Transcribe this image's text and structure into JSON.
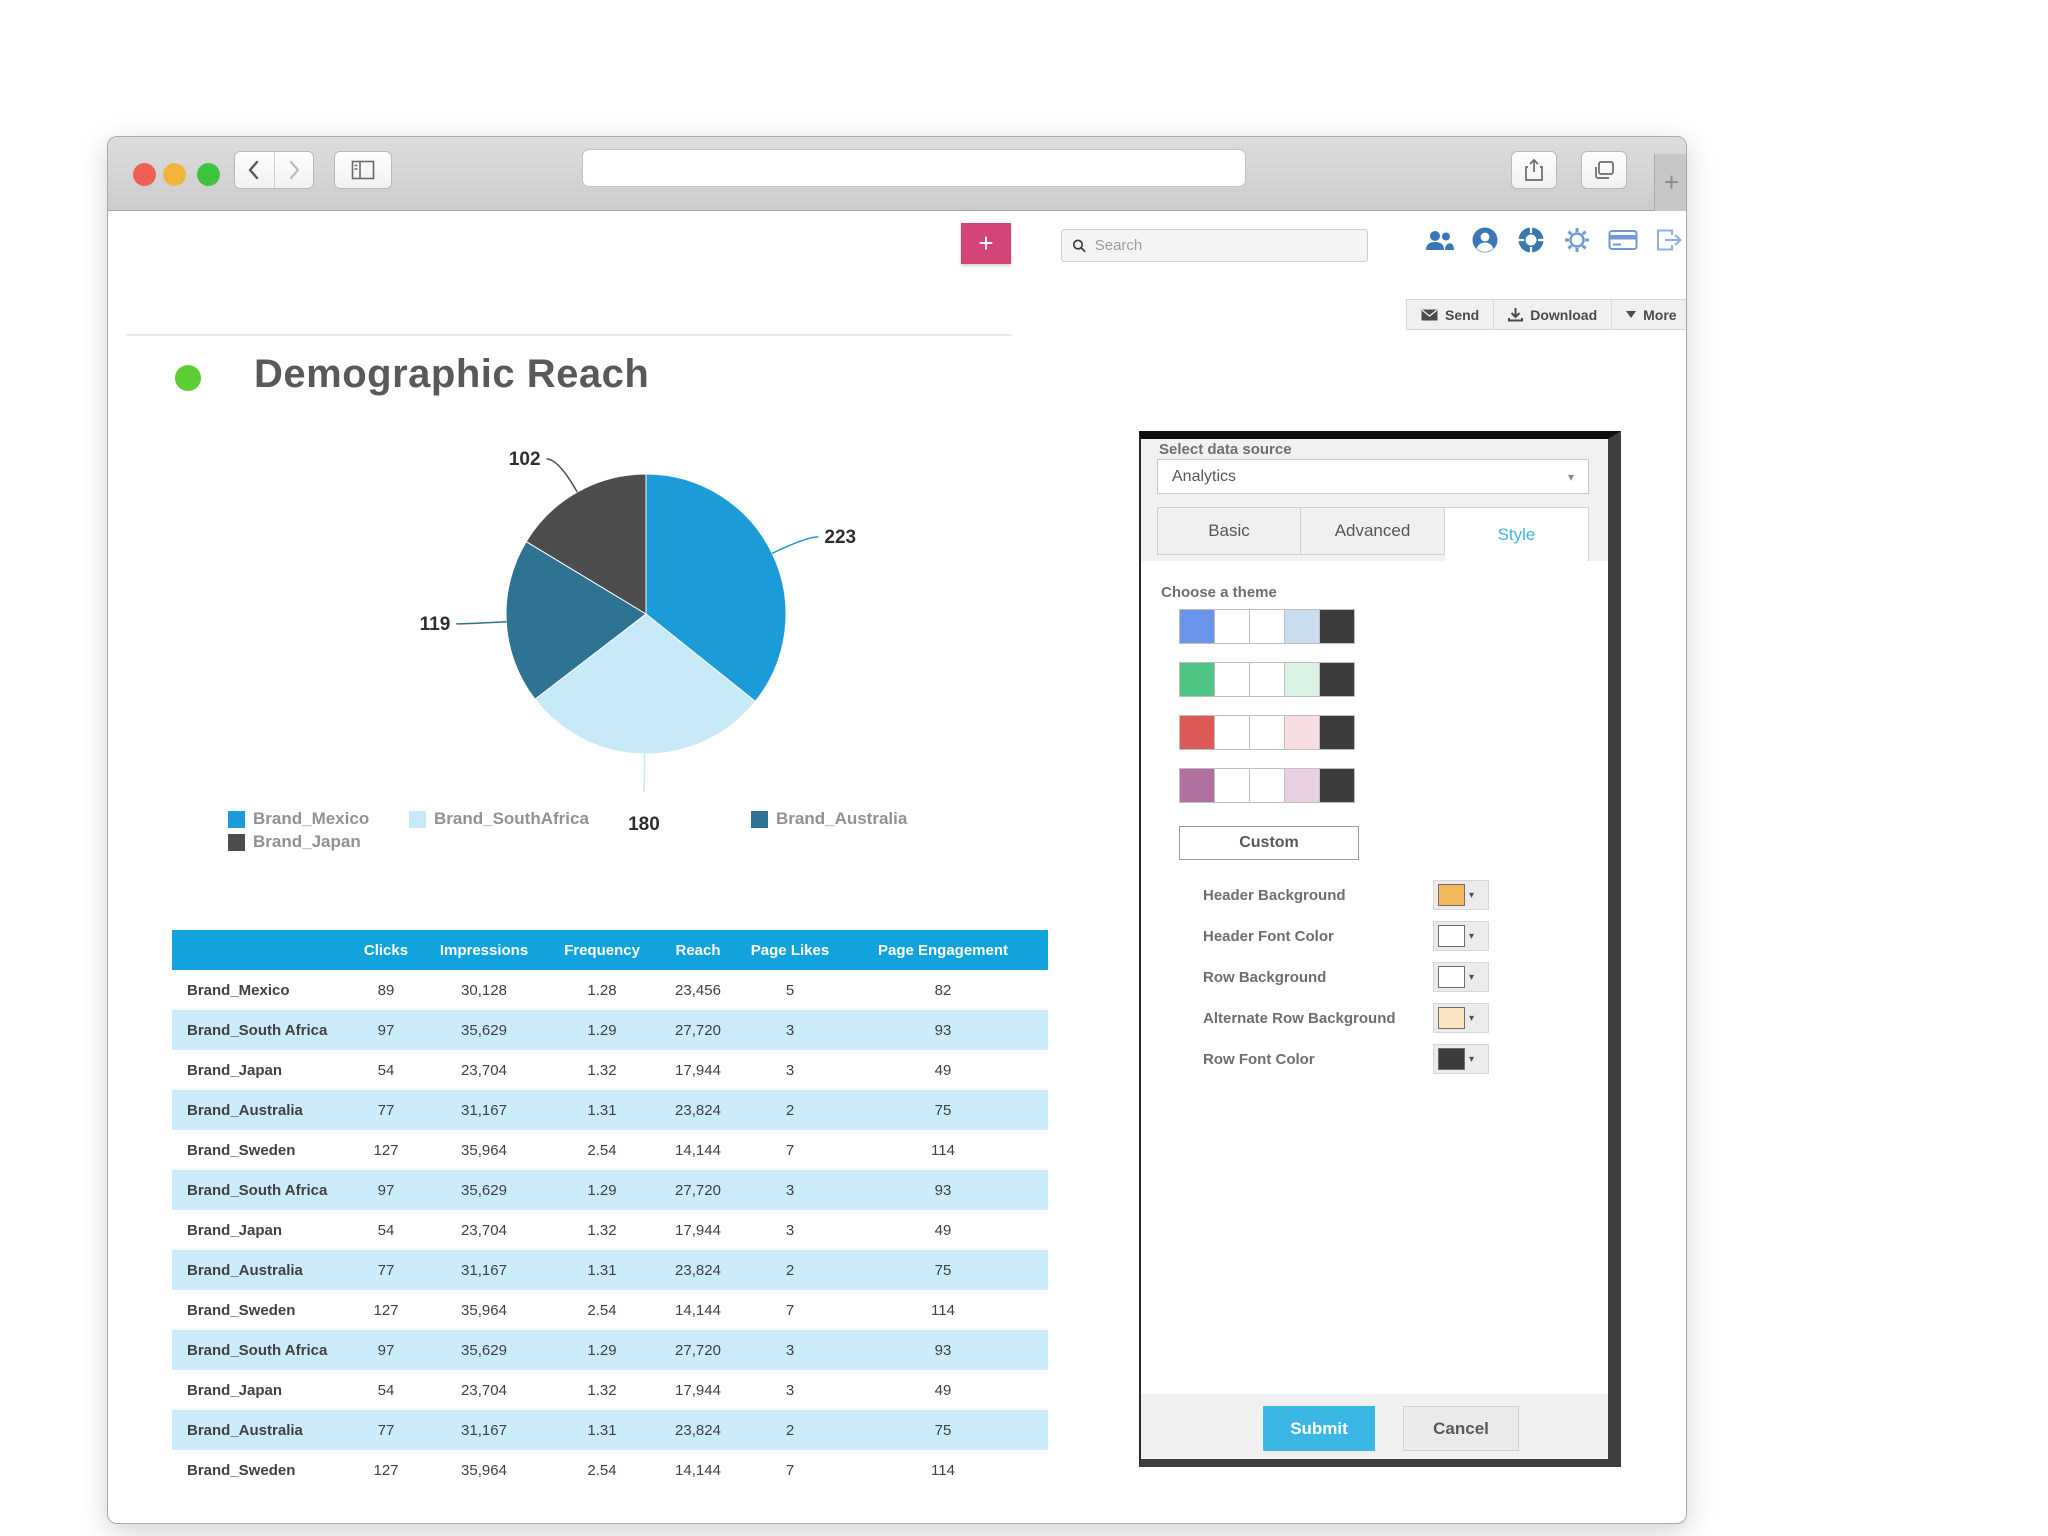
{
  "search": {
    "placeholder": "Search"
  },
  "toolbar": {
    "add_label": "+",
    "new_tab_label": "+",
    "header_icons": [
      "users",
      "user-profile",
      "help-ring",
      "settings-gear",
      "billing-card",
      "logout"
    ]
  },
  "actions": {
    "send": "Send",
    "download": "Download",
    "more": "More"
  },
  "page": {
    "title": "Demographic Reach"
  },
  "chart_data": {
    "type": "pie",
    "title": "Demographic Reach",
    "labels": [
      "Brand_Mexico",
      "Brand_SouthAfrica",
      "Brand_Australia",
      "Brand_Japan"
    ],
    "values": [
      223,
      180,
      119,
      102
    ],
    "colors": [
      "#1b9bd8",
      "#c7e9f8",
      "#2e7392",
      "#4d4d4d"
    ],
    "start_angle_deg": 0,
    "direction": "clockwise",
    "legend_position": "bottom",
    "data_labels": [
      "223",
      "180",
      "119",
      "102"
    ]
  },
  "table": {
    "columns": [
      "Clicks",
      "Impressions",
      "Frequency",
      "Reach",
      "Page Likes",
      "Page Engagement"
    ],
    "rows": [
      {
        "label": "Brand_Mexico",
        "values": [
          "89",
          "30,128",
          "1.28",
          "23,456",
          "5",
          "82"
        ]
      },
      {
        "label": "Brand_South Africa",
        "values": [
          "97",
          "35,629",
          "1.29",
          "27,720",
          "3",
          "93"
        ]
      },
      {
        "label": "Brand_Japan",
        "values": [
          "54",
          "23,704",
          "1.32",
          "17,944",
          "3",
          "49"
        ]
      },
      {
        "label": "Brand_Australia",
        "values": [
          "77",
          "31,167",
          "1.31",
          "23,824",
          "2",
          "75"
        ]
      },
      {
        "label": "Brand_Sweden",
        "values": [
          "127",
          "35,964",
          "2.54",
          "14,144",
          "7",
          "114"
        ]
      },
      {
        "label": "Brand_South Africa",
        "values": [
          "97",
          "35,629",
          "1.29",
          "27,720",
          "3",
          "93"
        ]
      },
      {
        "label": "Brand_Japan",
        "values": [
          "54",
          "23,704",
          "1.32",
          "17,944",
          "3",
          "49"
        ]
      },
      {
        "label": "Brand_Australia",
        "values": [
          "77",
          "31,167",
          "1.31",
          "23,824",
          "2",
          "75"
        ]
      },
      {
        "label": "Brand_Sweden",
        "values": [
          "127",
          "35,964",
          "2.54",
          "14,144",
          "7",
          "114"
        ]
      },
      {
        "label": "Brand_South Africa",
        "values": [
          "97",
          "35,629",
          "1.29",
          "27,720",
          "3",
          "93"
        ]
      },
      {
        "label": "Brand_Japan",
        "values": [
          "54",
          "23,704",
          "1.32",
          "17,944",
          "3",
          "49"
        ]
      },
      {
        "label": "Brand_Australia",
        "values": [
          "77",
          "31,167",
          "1.31",
          "23,824",
          "2",
          "75"
        ]
      },
      {
        "label": "Brand_Sweden",
        "values": [
          "127",
          "35,964",
          "2.54",
          "14,144",
          "7",
          "114"
        ]
      }
    ]
  },
  "panel": {
    "data_source_label": "Select data source",
    "data_source_value": "Analytics",
    "tabs": [
      {
        "label": "Basic",
        "active": false
      },
      {
        "label": "Advanced",
        "active": false
      },
      {
        "label": "Style",
        "active": true
      }
    ],
    "theme_label": "Choose a theme",
    "themes": [
      {
        "name": "blue-theme",
        "colors": [
          "#6a93ea",
          "#ffffff",
          "#ffffff",
          "#c9dcf0",
          "#3b3b3c"
        ]
      },
      {
        "name": "green-theme",
        "colors": [
          "#4ec584",
          "#ffffff",
          "#ffffff",
          "#d9f2e3",
          "#3b3b3c"
        ]
      },
      {
        "name": "red-theme",
        "colors": [
          "#db5a58",
          "#ffffff",
          "#ffffff",
          "#f7dee2",
          "#3b3b3c"
        ]
      },
      {
        "name": "purple-theme",
        "colors": [
          "#b0719f",
          "#ffffff",
          "#ffffff",
          "#e9cfe2",
          "#3b3b3c"
        ]
      }
    ],
    "custom_label": "Custom",
    "pickers": [
      {
        "label": "Header Background",
        "color": "#f6b85c"
      },
      {
        "label": "Header Font Color",
        "color": "#ffffff"
      },
      {
        "label": "Row Background",
        "color": "#ffffff"
      },
      {
        "label": "Alternate Row Background",
        "color": "#fce6c1"
      },
      {
        "label": "Row Font Color",
        "color": "#3b3b3c"
      }
    ],
    "submit_label": "Submit",
    "cancel_label": "Cancel"
  }
}
